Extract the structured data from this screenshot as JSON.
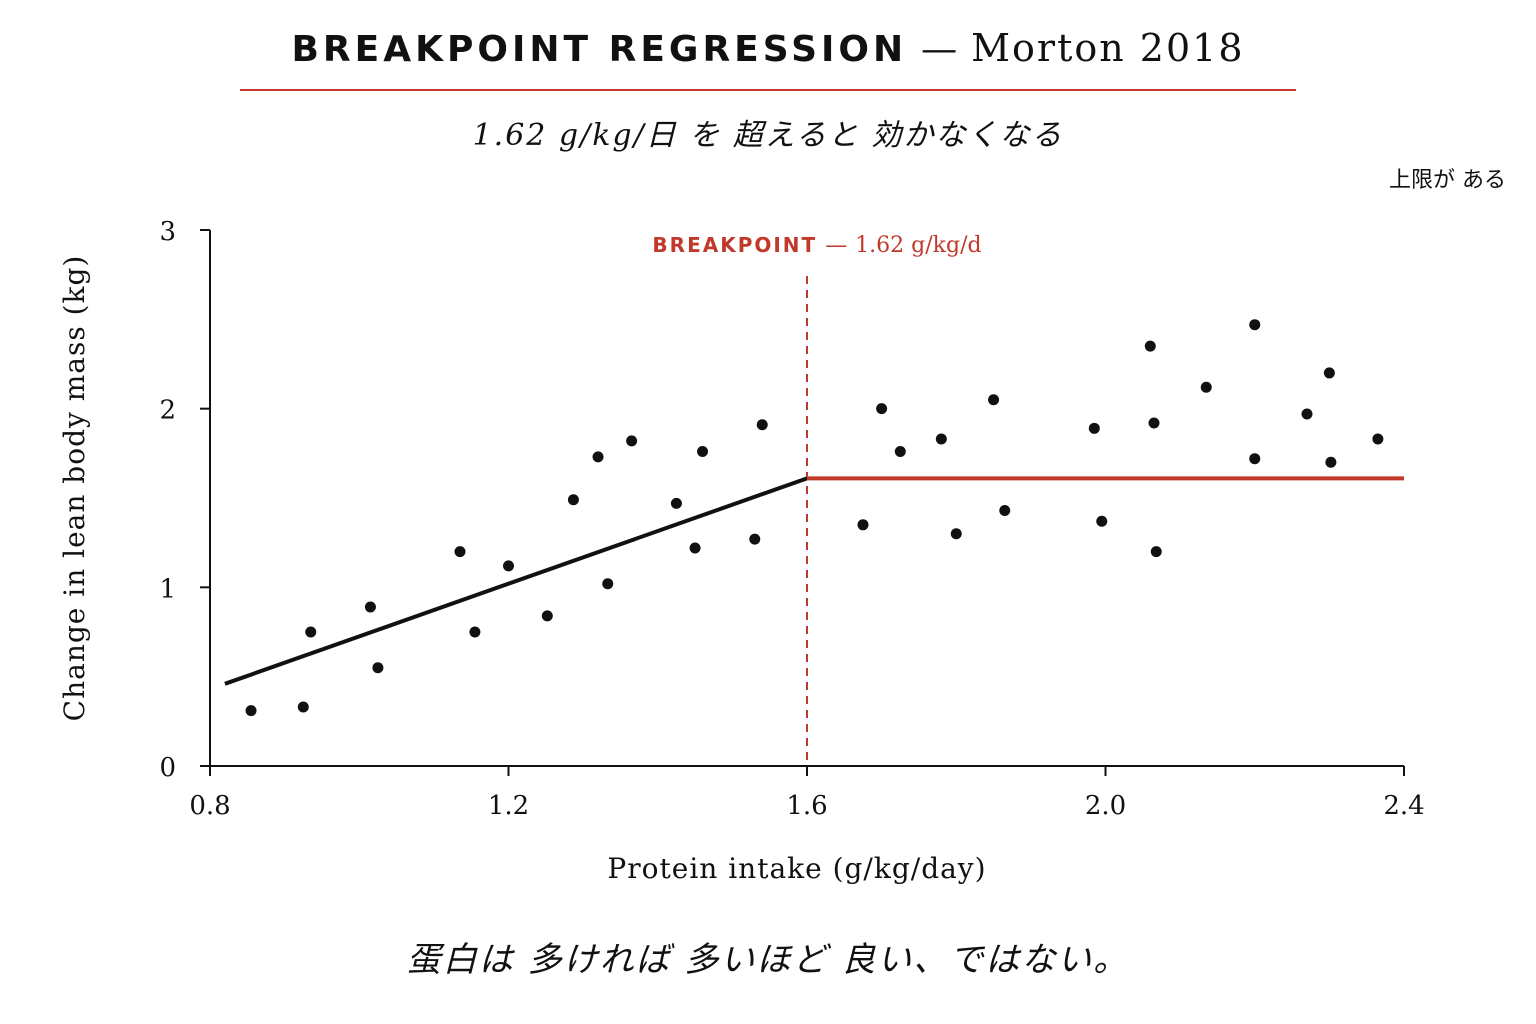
{
  "header": {
    "title_main": "BREAKPOINT REGRESSION",
    "title_dash": "—",
    "title_sub": "Morton 2018",
    "subtitle": "1.62 g/kg/日 を 超えると 効かなくなる",
    "corner_note": "上限が ある"
  },
  "footer": {
    "text": "蛋白は 多ければ 多いほど 良い、ではない。"
  },
  "colors": {
    "accent": "#c0392b",
    "ink": "#111111",
    "fit_line": "#111111"
  },
  "chart_data": {
    "type": "scatter",
    "title": "BREAKPOINT REGRESSION — Morton 2018",
    "xlabel": "Protein intake (g/kg/day)",
    "ylabel": "Change in lean body mass (kg)",
    "xlim": [
      0.8,
      2.4
    ],
    "ylim": [
      0,
      3
    ],
    "x_ticks": [
      0.8,
      1.2,
      1.6,
      2.0,
      2.4
    ],
    "x_tick_labels": [
      "0.8",
      "1.2",
      "1.6",
      "2.0",
      "2.4"
    ],
    "y_ticks": [
      0,
      1,
      2,
      3
    ],
    "y_tick_labels": [
      "0",
      "1",
      "2",
      "3"
    ],
    "grid": false,
    "breakpoint": {
      "x": 1.62,
      "label_main": "BREAKPOINT",
      "label_dash": "—",
      "label_value": "1.62 g/kg/d",
      "style": "dashed"
    },
    "fit_segments": [
      {
        "x": [
          0.82,
          1.6
        ],
        "y": [
          0.46,
          1.61
        ],
        "color": "#111111"
      },
      {
        "x": [
          1.6,
          2.4
        ],
        "y": [
          1.61,
          1.61
        ],
        "color": "#c0392b"
      }
    ],
    "points": {
      "x": [
        0.855,
        0.925,
        0.935,
        1.015,
        1.025,
        1.135,
        1.155,
        1.2,
        1.252,
        1.287,
        1.32,
        1.333,
        1.365,
        1.425,
        1.45,
        1.46,
        1.53,
        1.54,
        1.675,
        1.7,
        1.725,
        1.78,
        1.8,
        1.85,
        1.865,
        1.985,
        1.995,
        2.06,
        2.065,
        2.068,
        2.135,
        2.2,
        2.2,
        2.27,
        2.3,
        2.302,
        2.365
      ],
      "y": [
        0.31,
        0.33,
        0.75,
        0.89,
        0.55,
        1.2,
        0.75,
        1.12,
        0.84,
        1.49,
        1.73,
        1.02,
        1.82,
        1.47,
        1.22,
        1.76,
        1.27,
        1.91,
        1.35,
        2.0,
        1.76,
        1.83,
        1.3,
        2.05,
        1.43,
        1.89,
        1.37,
        2.35,
        1.92,
        1.2,
        2.12,
        2.47,
        1.72,
        1.97,
        2.2,
        1.7,
        1.83
      ]
    }
  }
}
